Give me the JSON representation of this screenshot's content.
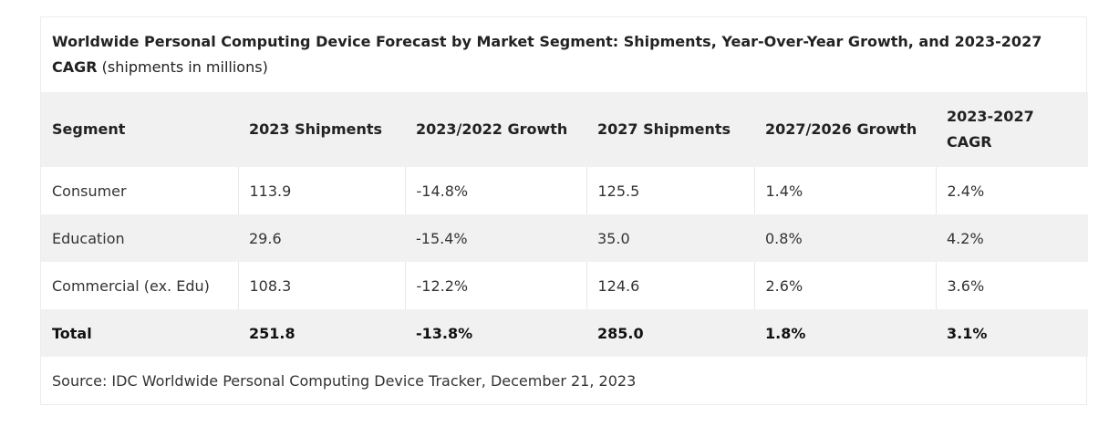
{
  "caption": {
    "title_bold": "Worldwide Personal Computing Device Forecast by Market Segment: Shipments, Year-Over-Year Growth, and 2023-2027 CAGR",
    "title_note": "(shipments in millions)"
  },
  "table": {
    "headers": [
      "Segment",
      "2023 Shipments",
      "2023/2022 Growth",
      "2027 Shipments",
      "2027/2026 Growth",
      "2023-2027 CAGR"
    ],
    "rows": [
      [
        "Consumer",
        "113.9",
        "-14.8%",
        "125.5",
        "1.4%",
        "2.4%"
      ],
      [
        "Education",
        "29.6",
        "-15.4%",
        "35.0",
        "0.8%",
        "4.2%"
      ],
      [
        "Commercial (ex. Edu)",
        "108.3",
        "-12.2%",
        "124.6",
        "2.6%",
        "3.6%"
      ],
      [
        "Total",
        "251.8",
        "-13.8%",
        "285.0",
        "1.8%",
        "3.1%"
      ]
    ]
  },
  "source": "Source: IDC Worldwide Personal Computing Device Tracker, December 21, 2023"
}
